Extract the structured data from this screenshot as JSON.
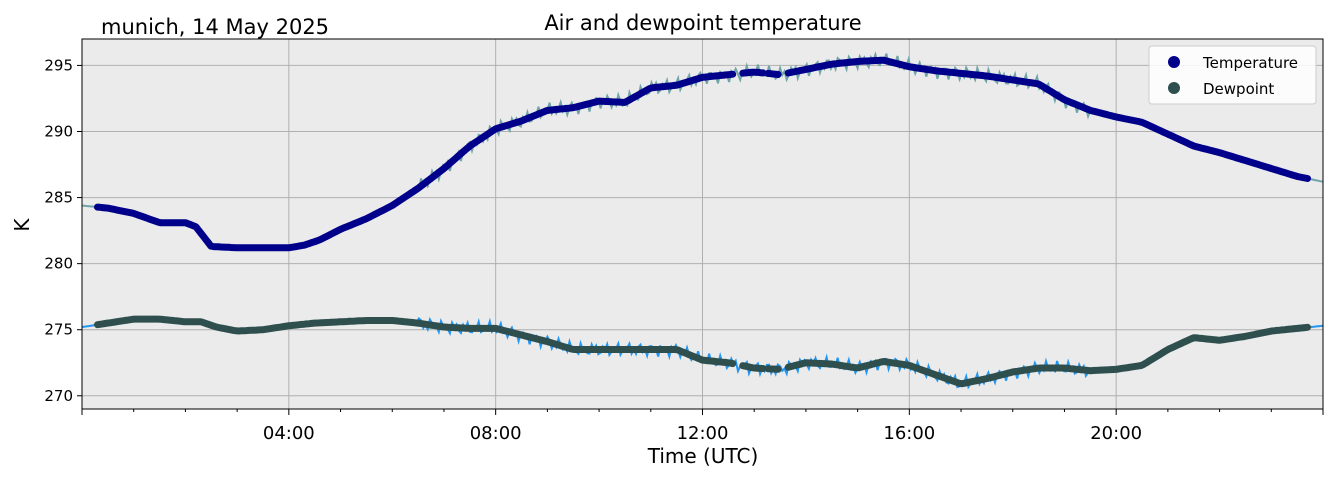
{
  "figure": {
    "location_date": "munich, 14 May 2025",
    "title": "Air and dewpoint temperature"
  },
  "chart_data": {
    "type": "line",
    "title": "Air and dewpoint temperature",
    "xlabel": "Time (UTC)",
    "ylabel": "K",
    "xlim": [
      0,
      24
    ],
    "ylim": [
      269,
      297
    ],
    "x_ticks": [
      {
        "value": 4,
        "label": "04:00"
      },
      {
        "value": 8,
        "label": "08:00"
      },
      {
        "value": 12,
        "label": "12:00"
      },
      {
        "value": 16,
        "label": "16:00"
      },
      {
        "value": 20,
        "label": "20:00"
      }
    ],
    "y_ticks": [
      270,
      275,
      280,
      285,
      290,
      295
    ],
    "grid": true,
    "background": "#ebebeb",
    "legend": {
      "position": "top-right",
      "entries": [
        {
          "label": "Temperature",
          "color": "#00008b",
          "marker": "circle"
        },
        {
          "label": "Dewpoint",
          "color": "#2f4f4f",
          "marker": "circle"
        }
      ]
    },
    "series": [
      {
        "name": "Temperature",
        "raw_color": "#6fa4a8",
        "smooth_color": "#00008b",
        "x": [
          0,
          0.5,
          1,
          1.5,
          2,
          2.2,
          2.5,
          3,
          3.5,
          4,
          4.3,
          4.6,
          5,
          5.5,
          6,
          6.5,
          7,
          7.5,
          8,
          8.5,
          9,
          9.5,
          10,
          10.5,
          11,
          11.5,
          12,
          12.5,
          13,
          13.5,
          14,
          14.5,
          15,
          15.5,
          16,
          16.5,
          17,
          17.5,
          18,
          18.5,
          19,
          19.5,
          20,
          20.5,
          21,
          21.5,
          22,
          22.5,
          23,
          23.5,
          24
        ],
        "values": [
          284.4,
          284.2,
          283.8,
          283.1,
          283.1,
          282.8,
          281.3,
          281.2,
          281.2,
          281.2,
          281.4,
          281.8,
          282.6,
          283.4,
          284.4,
          285.7,
          287.2,
          288.9,
          290.2,
          290.8,
          291.6,
          291.8,
          292.3,
          292.2,
          293.3,
          293.5,
          294.1,
          294.3,
          294.5,
          294.3,
          294.7,
          295.1,
          295.3,
          295.4,
          294.9,
          294.6,
          294.4,
          294.2,
          293.9,
          293.6,
          292.4,
          291.6,
          291.1,
          290.7,
          289.8,
          288.9,
          288.4,
          287.8,
          287.2,
          286.6,
          286.2
        ]
      },
      {
        "name": "Dewpoint",
        "raw_color": "#2196f3",
        "smooth_color": "#2f4f4f",
        "x": [
          0,
          0.5,
          1,
          1.5,
          2,
          2.3,
          2.6,
          3,
          3.5,
          4,
          4.5,
          5,
          5.5,
          6,
          6.5,
          7,
          7.5,
          8,
          8.5,
          9,
          9.5,
          10,
          10.5,
          11,
          11.5,
          12,
          12.5,
          13,
          13.5,
          14,
          14.5,
          15,
          15.5,
          16,
          16.5,
          17,
          17.5,
          18,
          18.5,
          19,
          19.5,
          20,
          20.5,
          21,
          21.5,
          22,
          22.5,
          23,
          23.5,
          24
        ],
        "values": [
          275.2,
          275.5,
          275.8,
          275.8,
          275.6,
          275.6,
          275.2,
          274.9,
          275.0,
          275.3,
          275.5,
          275.6,
          275.7,
          275.7,
          275.5,
          275.2,
          275.1,
          275.1,
          274.6,
          274.1,
          273.5,
          273.5,
          273.5,
          273.5,
          273.5,
          272.7,
          272.5,
          272.1,
          272.0,
          272.5,
          272.4,
          272.1,
          272.6,
          272.3,
          271.6,
          270.9,
          271.3,
          271.8,
          272.1,
          272.1,
          271.9,
          272.0,
          272.3,
          273.5,
          274.4,
          274.2,
          274.5,
          274.9,
          275.1,
          275.3
        ]
      }
    ]
  }
}
